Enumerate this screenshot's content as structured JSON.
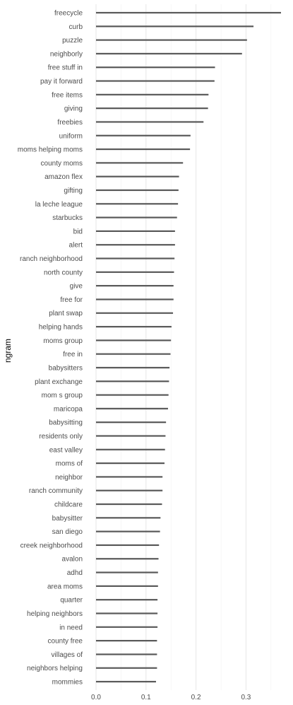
{
  "chart_data": {
    "type": "bar",
    "orientation": "horizontal",
    "ylabel": "ngram",
    "xlabel": "",
    "xlim": [
      0,
      0.37
    ],
    "xticks": [
      0.0,
      0.1,
      0.2,
      0.3
    ],
    "xtick_labels": [
      "0.0",
      "0.1",
      "0.2",
      "0.3"
    ],
    "grid": true,
    "bar_color": "#595959",
    "categories": [
      "freecycle",
      "curb",
      "puzzle",
      "neighborly",
      "free stuff in",
      "pay it forward",
      "free items",
      "giving",
      "freebies",
      "uniform",
      "moms helping moms",
      "county moms",
      "amazon flex",
      "gifting",
      "la leche league",
      "starbucks",
      "bid",
      "alert",
      "ranch neighborhood",
      "north county",
      "give",
      "free for",
      "plant swap",
      "helping hands",
      "moms group",
      "free in",
      "babysitters",
      "plant exchange",
      "mom s group",
      "maricopa",
      "babysitting",
      "residents only",
      "east valley",
      "moms of",
      "neighbor",
      "ranch community",
      "childcare",
      "babysitter",
      "san diego",
      "creek neighborhood",
      "avalon",
      "adhd",
      "area moms",
      "quarter",
      "helping neighbors",
      "in need",
      "county free",
      "villages of",
      "neighbors helping",
      "mommies"
    ],
    "values": [
      0.37,
      0.315,
      0.302,
      0.292,
      0.238,
      0.237,
      0.225,
      0.224,
      0.215,
      0.189,
      0.188,
      0.174,
      0.166,
      0.165,
      0.164,
      0.162,
      0.158,
      0.158,
      0.157,
      0.156,
      0.155,
      0.155,
      0.154,
      0.151,
      0.15,
      0.149,
      0.147,
      0.146,
      0.145,
      0.144,
      0.14,
      0.139,
      0.138,
      0.137,
      0.133,
      0.133,
      0.132,
      0.129,
      0.128,
      0.126,
      0.125,
      0.124,
      0.124,
      0.123,
      0.123,
      0.123,
      0.122,
      0.122,
      0.122,
      0.12
    ]
  }
}
